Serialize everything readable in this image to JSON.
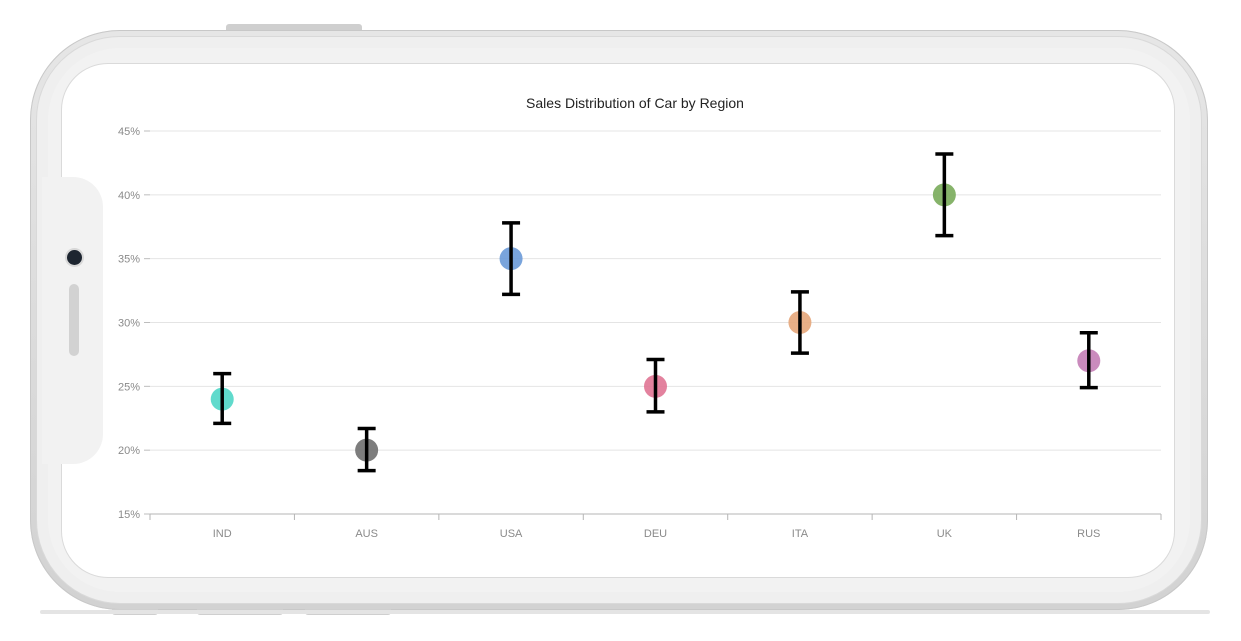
{
  "chart_data": {
    "type": "scatter",
    "subtype": "error-bar",
    "title": "Sales Distribution of Car by Region",
    "xlabel": "",
    "ylabel": "",
    "ylim": [
      15,
      45
    ],
    "yticks": [
      15,
      20,
      25,
      30,
      35,
      40,
      45
    ],
    "y_tick_suffix": "%",
    "categories": [
      "IND",
      "AUS",
      "USA",
      "DEU",
      "ITA",
      "UK",
      "RUS"
    ],
    "values": [
      24,
      20,
      35,
      25,
      30,
      40,
      27
    ],
    "error_low": [
      22.1,
      18.4,
      32.2,
      23.0,
      27.6,
      36.8,
      24.9
    ],
    "error_high": [
      26.0,
      21.7,
      37.8,
      27.1,
      32.4,
      43.2,
      29.2
    ],
    "colors": [
      "#4fd6c6",
      "#6f6f6f",
      "#6a9ad8",
      "#e07493",
      "#e6a67a",
      "#79ab5a",
      "#c47eb6"
    ],
    "grid": true,
    "legend": "none"
  }
}
